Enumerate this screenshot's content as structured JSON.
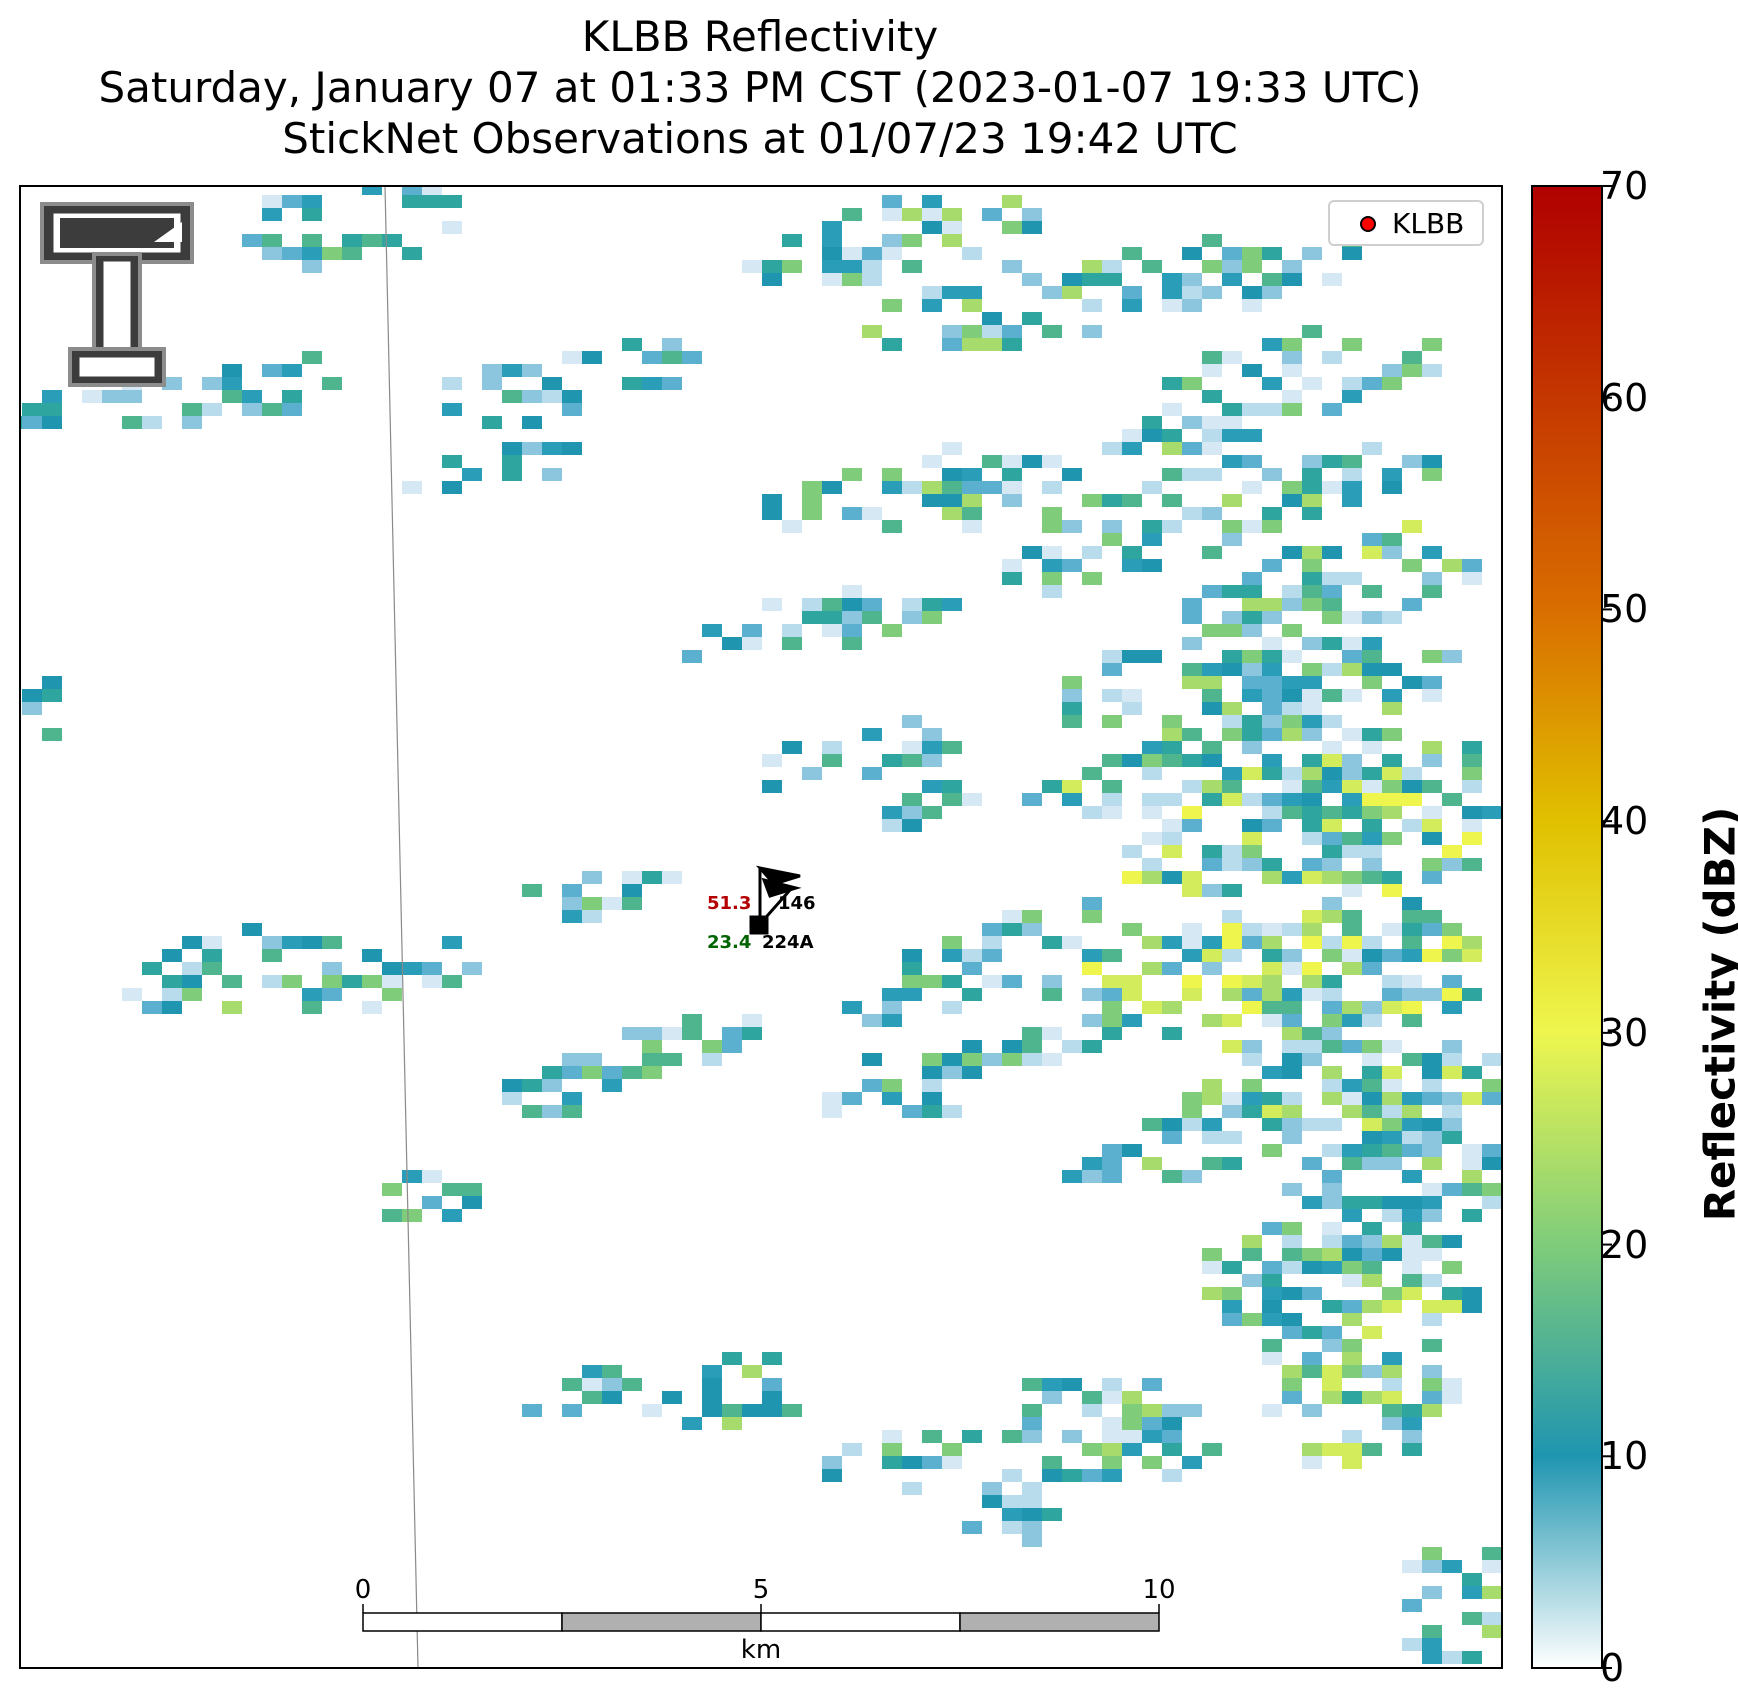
{
  "title": {
    "line1": "KLBB Reflectivity",
    "line2": "Saturday, January 07 at 01:33 PM CST (2023-01-07 19:33 UTC)",
    "line3": "StickNet Observations at 01/07/23 19:42 UTC"
  },
  "legend": {
    "label": "KLBB",
    "marker_color": "#ff0000"
  },
  "colorbar": {
    "label": "Reflectivity (dBZ)",
    "ticks": [
      "0",
      "10",
      "20",
      "30",
      "40",
      "50",
      "60",
      "70"
    ],
    "stops": [
      "#ffffff",
      "#1f95b0",
      "#7fcc7a",
      "#eef64e",
      "#e0c000",
      "#d96e00",
      "#b00000"
    ]
  },
  "station": {
    "id": "224A",
    "temperature": "51.3",
    "dewpoint": "23.4",
    "pressure_code": "146",
    "temp_color": "#b40000",
    "dew_color": "#006400"
  },
  "scalebar": {
    "labels": [
      "0",
      "5",
      "10"
    ],
    "unit": "km"
  },
  "logo": {
    "name": "texas-tech-double-t-logo"
  }
}
